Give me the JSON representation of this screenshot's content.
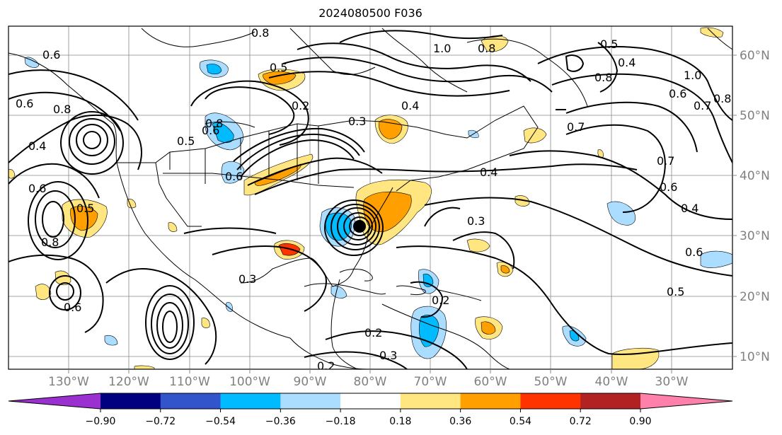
{
  "title": "2024080500 F036",
  "lon_labels": [
    "130°W",
    "120°W",
    "110°W",
    "100°W",
    "90°W",
    "80°W",
    "70°W",
    "60°W",
    "50°W",
    "40°W",
    "30°W"
  ],
  "lat_labels": [
    "60°N",
    "50°N",
    "40°N",
    "30°N",
    "20°N",
    "10°N"
  ],
  "colorbar": {
    "ticks": [
      "−0.90",
      "−0.72",
      "−0.54",
      "−0.36",
      "−0.18",
      "0.18",
      "0.36",
      "0.54",
      "0.72",
      "0.90"
    ],
    "colors": [
      "#9b30d0",
      "#000080",
      "#3355cc",
      "#00bbff",
      "#aaddff",
      "#ffffff",
      "#ffe680",
      "#ffa000",
      "#ff3300",
      "#b22222",
      "#ff80aa"
    ]
  },
  "contour_labels": [
    {
      "text": "0.8"
    },
    {
      "text": "0.5"
    },
    {
      "text": "1.0"
    },
    {
      "text": "0.8"
    },
    {
      "text": "0.5"
    },
    {
      "text": "0.4"
    },
    {
      "text": "0.8"
    },
    {
      "text": "1.0"
    },
    {
      "text": "0.6"
    },
    {
      "text": "0.7"
    },
    {
      "text": "0.8"
    },
    {
      "text": "0.2"
    },
    {
      "text": "0.3"
    },
    {
      "text": "0.4"
    },
    {
      "text": "0.7"
    },
    {
      "text": "0.4"
    },
    {
      "text": "0.7"
    },
    {
      "text": "0.6"
    },
    {
      "text": "0.4"
    },
    {
      "text": "0.6"
    },
    {
      "text": "0.5"
    },
    {
      "text": "0.2"
    },
    {
      "text": "0.3"
    },
    {
      "text": "0.2"
    },
    {
      "text": "0.3"
    },
    {
      "text": "0.2"
    },
    {
      "text": "0.6"
    },
    {
      "text": "0.8"
    },
    {
      "text": "0.5"
    },
    {
      "text": "0.4"
    },
    {
      "text": "0.6"
    },
    {
      "text": "0.8"
    },
    {
      "text": "0.6"
    },
    {
      "text": "0.5"
    },
    {
      "text": "0.6"
    },
    {
      "text": "0.8"
    },
    {
      "text": "0.3"
    },
    {
      "text": "0.6"
    },
    {
      "text": "0.6"
    }
  ]
}
